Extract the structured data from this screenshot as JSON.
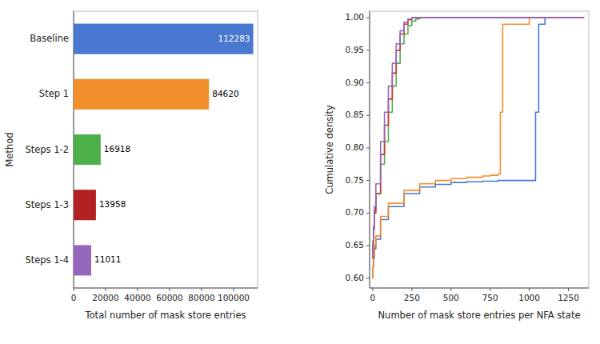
{
  "chart_data": [
    {
      "type": "bar",
      "orientation": "horizontal",
      "categories": [
        "Baseline",
        "Step 1",
        "Steps 1-2",
        "Steps 1-3",
        "Steps 1-4"
      ],
      "values": [
        112283,
        84620,
        16918,
        13958,
        11011
      ],
      "colors": [
        "#4878CF",
        "#F28E2B",
        "#4DAF4A",
        "#B22222",
        "#9467BD"
      ],
      "xlabel": "Total number of mask store entries",
      "ylabel": "Method",
      "xlim": [
        0,
        115000
      ],
      "xticks": [
        0,
        20000,
        40000,
        60000,
        80000,
        100000
      ],
      "data_labels": true
    },
    {
      "type": "step",
      "xlabel": "Number of mask store entries per NFA state",
      "ylabel": "Cumulative density",
      "xlim": [
        -20,
        1380
      ],
      "ylim": [
        0.585,
        1.01
      ],
      "xticks": [
        0,
        250,
        500,
        750,
        1000,
        1250
      ],
      "yticks": [
        {
          "value": 0.6,
          "label": "0.60"
        },
        0.65,
        {
          "value": 0.7,
          "label": "0.70"
        },
        0.75,
        {
          "value": 0.8,
          "label": "0.80"
        },
        0.85,
        {
          "value": 0.9,
          "label": "0.90"
        },
        0.95,
        {
          "value": 1.0,
          "label": "1.00"
        }
      ],
      "series": [
        {
          "color": "#4878CF",
          "x": [
            0,
            1,
            5,
            10,
            20,
            50,
            100,
            200,
            300,
            400,
            500,
            600,
            700,
            800,
            900,
            1000,
            1040,
            1060,
            1100,
            1350
          ],
          "values": [
            0.6,
            0.618,
            0.63,
            0.645,
            0.66,
            0.69,
            0.71,
            0.73,
            0.74,
            0.744,
            0.747,
            0.748,
            0.749,
            0.75,
            0.75,
            0.75,
            0.855,
            0.99,
            1.0,
            1.0
          ]
        },
        {
          "color": "#F28E2B",
          "x": [
            0,
            1,
            5,
            10,
            20,
            50,
            100,
            200,
            300,
            400,
            500,
            600,
            700,
            750,
            800,
            815,
            830,
            1000,
            1350
          ],
          "values": [
            0.6,
            0.618,
            0.635,
            0.65,
            0.665,
            0.695,
            0.715,
            0.735,
            0.745,
            0.75,
            0.753,
            0.755,
            0.757,
            0.758,
            0.76,
            0.855,
            0.99,
            1.0,
            1.0
          ]
        },
        {
          "color": "#4DAF4A",
          "x": [
            0,
            1,
            5,
            10,
            20,
            50,
            75,
            100,
            125,
            150,
            175,
            200,
            225,
            250,
            275,
            300,
            350,
            400,
            1350
          ],
          "values": [
            0.64,
            0.658,
            0.68,
            0.705,
            0.73,
            0.775,
            0.81,
            0.855,
            0.895,
            0.93,
            0.96,
            0.975,
            0.988,
            0.995,
            0.998,
            1.0,
            1.0,
            1.0,
            1.0
          ]
        },
        {
          "color": "#CC3333",
          "x": [
            0,
            1,
            5,
            10,
            20,
            50,
            75,
            100,
            125,
            150,
            175,
            200,
            225,
            250,
            275,
            300,
            1350
          ],
          "values": [
            0.63,
            0.65,
            0.675,
            0.7,
            0.73,
            0.79,
            0.835,
            0.875,
            0.915,
            0.95,
            0.975,
            0.99,
            0.997,
            1.0,
            1.0,
            1.0,
            1.0
          ]
        },
        {
          "color": "#9467BD",
          "x": [
            0,
            1,
            5,
            10,
            20,
            50,
            75,
            100,
            125,
            150,
            175,
            200,
            225,
            250,
            1350
          ],
          "values": [
            0.635,
            0.655,
            0.68,
            0.71,
            0.745,
            0.81,
            0.855,
            0.895,
            0.93,
            0.96,
            0.98,
            0.993,
            0.998,
            1.0,
            1.0
          ]
        }
      ]
    }
  ]
}
